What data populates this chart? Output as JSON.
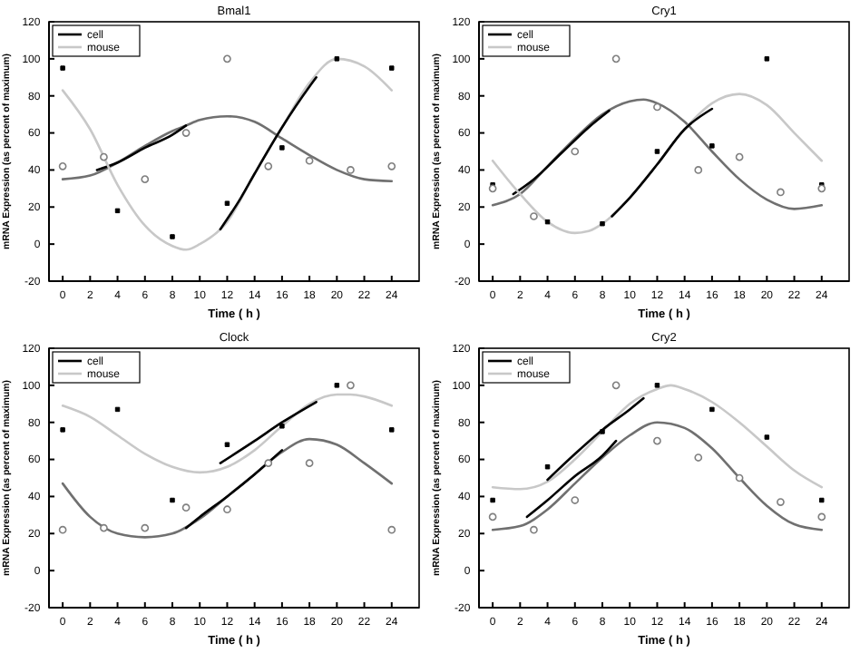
{
  "chart_data": [
    {
      "type": "line",
      "title": "Bmal1",
      "xlabel": "Time ( h )",
      "ylabel": "mRNA Expression (as percent of maximum)",
      "xlim": [
        -1,
        26
      ],
      "ylim": [
        -20,
        120
      ],
      "xticks": [
        0,
        2,
        4,
        6,
        8,
        10,
        12,
        14,
        16,
        18,
        20,
        22,
        24
      ],
      "yticks": [
        -20,
        0,
        20,
        40,
        60,
        80,
        100,
        120
      ],
      "legend": "top left",
      "series": [
        {
          "type": "line",
          "x": [
            0,
            2,
            4,
            6,
            8,
            9,
            10,
            12,
            14,
            16,
            18,
            20,
            22,
            24
          ],
          "values": [
            35,
            37,
            44,
            53,
            61,
            64,
            67,
            69,
            66,
            57,
            48,
            40,
            35,
            34
          ],
          "color": "#707070",
          "marker": "none"
        },
        {
          "name": "cell",
          "type": "line",
          "x": [
            2.5,
            4,
            6,
            8,
            9
          ],
          "values": [
            40,
            44,
            52,
            59,
            64
          ],
          "color": "#000000",
          "marker": "none"
        },
        {
          "name": "mouse",
          "type": "line",
          "x": [
            0,
            2,
            4,
            6,
            8,
            9,
            10,
            12,
            14,
            16,
            18,
            20,
            22,
            24
          ],
          "values": [
            83,
            62,
            32,
            10,
            -1,
            -3,
            0,
            12,
            38,
            63,
            87,
            100,
            96,
            83
          ],
          "color": "#c8c8c8",
          "marker": "none"
        },
        {
          "type": "line",
          "x": [
            11.5,
            13,
            14,
            16,
            18,
            18.5
          ],
          "values": [
            8,
            25,
            38,
            63,
            85,
            90
          ],
          "color": "#000000",
          "marker": "none"
        },
        {
          "type": "scatter",
          "x": [
            0,
            4,
            8,
            12,
            16,
            20,
            24
          ],
          "values": [
            95,
            18,
            4,
            22,
            52,
            100,
            95
          ],
          "color": "#000000",
          "marker": "square"
        },
        {
          "type": "scatter",
          "x": [
            0,
            3,
            6,
            9,
            12,
            15,
            18,
            21,
            24
          ],
          "values": [
            42,
            47,
            35,
            60,
            100,
            42,
            45,
            40,
            42
          ],
          "color": "#808080",
          "marker": "circle"
        }
      ]
    },
    {
      "type": "line",
      "title": "Cry1",
      "xlabel": "Time ( h )",
      "ylabel": "mRNA Expression (as percent of maximum)",
      "xlim": [
        -1,
        26
      ],
      "ylim": [
        -20,
        120
      ],
      "xticks": [
        0,
        2,
        4,
        6,
        8,
        10,
        12,
        14,
        16,
        18,
        20,
        22,
        24
      ],
      "yticks": [
        -20,
        0,
        20,
        40,
        60,
        80,
        100,
        120
      ],
      "legend": "top left",
      "series": [
        {
          "type": "line",
          "x": [
            0,
            2,
            4,
            6,
            8,
            10,
            11,
            12,
            14,
            16,
            18,
            20,
            22,
            24
          ],
          "values": [
            21,
            27,
            42,
            57,
            70,
            77,
            78,
            76,
            66,
            50,
            35,
            24,
            19,
            21
          ],
          "color": "#707070",
          "marker": "none"
        },
        {
          "name": "cell",
          "type": "line",
          "x": [
            1.5,
            3,
            5,
            7,
            8.5
          ],
          "values": [
            27,
            35,
            49,
            63,
            72
          ],
          "color": "#000000",
          "marker": "none"
        },
        {
          "name": "mouse",
          "type": "line",
          "x": [
            0,
            2,
            4,
            6,
            7,
            8,
            10,
            12,
            14,
            16,
            18,
            20,
            22,
            24
          ],
          "values": [
            45,
            27,
            12,
            6,
            7,
            11,
            25,
            43,
            62,
            76,
            81,
            75,
            60,
            45
          ],
          "color": "#c8c8c8",
          "marker": "none"
        },
        {
          "type": "line",
          "x": [
            8.7,
            10,
            12,
            14,
            16
          ],
          "values": [
            15,
            25,
            43,
            62,
            73
          ],
          "color": "#000000",
          "marker": "none"
        },
        {
          "type": "scatter",
          "x": [
            0,
            4,
            8,
            12,
            16,
            20,
            24
          ],
          "values": [
            32,
            12,
            11,
            50,
            53,
            100,
            32
          ],
          "color": "#000000",
          "marker": "square"
        },
        {
          "type": "scatter",
          "x": [
            0,
            3,
            6,
            9,
            12,
            15,
            18,
            21,
            24
          ],
          "values": [
            30,
            15,
            50,
            100,
            74,
            40,
            47,
            28,
            30
          ],
          "color": "#808080",
          "marker": "circle"
        }
      ]
    },
    {
      "type": "line",
      "title": "Clock",
      "xlabel": "Time ( h )",
      "ylabel": "mRNA Expression (as percent of maximum)",
      "xlim": [
        -1,
        26
      ],
      "ylim": [
        -20,
        120
      ],
      "xticks": [
        0,
        2,
        4,
        6,
        8,
        10,
        12,
        14,
        16,
        18,
        20,
        22,
        24
      ],
      "yticks": [
        -20,
        0,
        20,
        40,
        60,
        80,
        100,
        120
      ],
      "legend": "top left",
      "series": [
        {
          "type": "line",
          "x": [
            0,
            2,
            4,
            6,
            8,
            10,
            12,
            14,
            16,
            18,
            20,
            22,
            24
          ],
          "values": [
            47,
            29,
            20,
            18,
            20,
            28,
            40,
            52,
            64,
            71,
            68,
            58,
            47
          ],
          "color": "#707070",
          "marker": "none"
        },
        {
          "name": "cell",
          "type": "line",
          "x": [
            9,
            10,
            12,
            14,
            16
          ],
          "values": [
            23,
            29,
            40,
            52,
            65
          ],
          "color": "#000000",
          "marker": "none"
        },
        {
          "name": "mouse",
          "type": "line",
          "x": [
            0,
            2,
            4,
            6,
            8,
            10,
            12,
            14,
            16,
            18,
            20,
            21,
            22,
            24
          ],
          "values": [
            89,
            83,
            73,
            63,
            56,
            53,
            56,
            65,
            78,
            90,
            95,
            95,
            94,
            89
          ],
          "color": "#c8c8c8",
          "marker": "none"
        },
        {
          "type": "line",
          "x": [
            11.5,
            14,
            16,
            18.5
          ],
          "values": [
            58,
            70,
            80,
            91
          ],
          "color": "#000000",
          "marker": "none"
        },
        {
          "type": "scatter",
          "x": [
            0,
            4,
            8,
            12,
            16,
            20,
            24
          ],
          "values": [
            76,
            87,
            38,
            68,
            78,
            100,
            76
          ],
          "color": "#000000",
          "marker": "square"
        },
        {
          "type": "scatter",
          "x": [
            0,
            3,
            6,
            9,
            12,
            15,
            18,
            21,
            24
          ],
          "values": [
            22,
            23,
            23,
            34,
            33,
            58,
            58,
            100,
            22
          ],
          "color": "#808080",
          "marker": "circle"
        }
      ]
    },
    {
      "type": "line",
      "title": "Cry2",
      "xlabel": "Time ( h )",
      "ylabel": "mRNA Expression (as percent of maximum)",
      "xlim": [
        -1,
        26
      ],
      "ylim": [
        -20,
        120
      ],
      "xticks": [
        0,
        2,
        4,
        6,
        8,
        10,
        12,
        14,
        16,
        18,
        20,
        22,
        24
      ],
      "yticks": [
        -20,
        0,
        20,
        40,
        60,
        80,
        100,
        120
      ],
      "legend": "top left",
      "series": [
        {
          "type": "line",
          "x": [
            0,
            2,
            4,
            6,
            8,
            10,
            12,
            14,
            16,
            18,
            20,
            22,
            24
          ],
          "values": [
            22,
            24,
            33,
            47,
            61,
            73,
            80,
            77,
            66,
            50,
            35,
            25,
            22
          ],
          "color": "#707070",
          "marker": "none"
        },
        {
          "name": "cell",
          "type": "line",
          "x": [
            2.5,
            4,
            6,
            8,
            9
          ],
          "values": [
            29,
            38,
            51,
            62,
            70
          ],
          "color": "#000000",
          "marker": "none"
        },
        {
          "name": "mouse",
          "type": "line",
          "x": [
            0,
            2,
            4,
            6,
            8,
            10,
            12,
            13,
            14,
            16,
            18,
            20,
            22,
            24
          ],
          "values": [
            45,
            44,
            48,
            60,
            75,
            90,
            98,
            100,
            98,
            91,
            80,
            67,
            54,
            45
          ],
          "color": "#c8c8c8",
          "marker": "none"
        },
        {
          "type": "line",
          "x": [
            4,
            6,
            8,
            10,
            11
          ],
          "values": [
            49,
            63,
            76,
            87,
            93
          ],
          "color": "#000000",
          "marker": "none"
        },
        {
          "type": "scatter",
          "x": [
            0,
            4,
            8,
            12,
            16,
            20,
            24
          ],
          "values": [
            38,
            56,
            75,
            100,
            87,
            72,
            38
          ],
          "color": "#000000",
          "marker": "square"
        },
        {
          "type": "scatter",
          "x": [
            0,
            3,
            6,
            9,
            12,
            15,
            18,
            21,
            24
          ],
          "values": [
            29,
            22,
            38,
            100,
            70,
            61,
            50,
            37,
            29
          ],
          "color": "#808080",
          "marker": "circle"
        }
      ]
    }
  ]
}
